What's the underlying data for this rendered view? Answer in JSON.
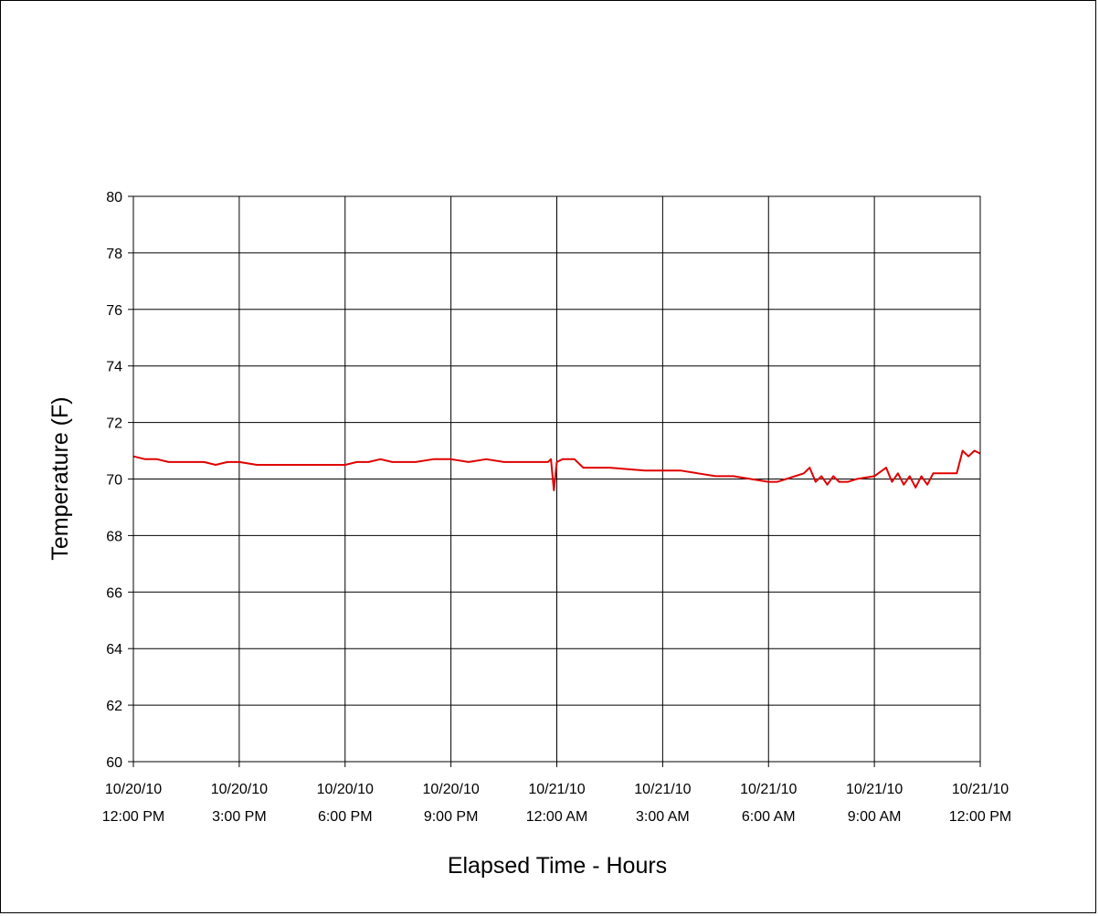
{
  "chart_data": {
    "type": "line",
    "title": "",
    "xlabel": "Elapsed Time - Hours",
    "ylabel": "Temperature (F)",
    "ylim": [
      60,
      80
    ],
    "yticks": [
      60,
      62,
      64,
      66,
      68,
      70,
      72,
      74,
      76,
      78,
      80
    ],
    "xlim": [
      "2010-10-20 12:00",
      "2010-10-21 12:00"
    ],
    "xticks": [
      {
        "date": "10/20/10",
        "time": "12:00 PM"
      },
      {
        "date": "10/20/10",
        "time": "3:00 PM"
      },
      {
        "date": "10/20/10",
        "time": "6:00 PM"
      },
      {
        "date": "10/20/10",
        "time": "9:00 PM"
      },
      {
        "date": "10/21/10",
        "time": "12:00 AM"
      },
      {
        "date": "10/21/10",
        "time": "3:00 AM"
      },
      {
        "date": "10/21/10",
        "time": "6:00 AM"
      },
      {
        "date": "10/21/10",
        "time": "9:00 AM"
      },
      {
        "date": "10/21/10",
        "time": "12:00 PM"
      }
    ],
    "grid": true,
    "legend": "none",
    "line_color": "#e00000",
    "series": [
      {
        "x": [
          "2010-10-20 12:00",
          "2010-10-20 12:20",
          "2010-10-20 12:40",
          "2010-10-20 13:00",
          "2010-10-20 13:30",
          "2010-10-20 14:00",
          "2010-10-20 14:20",
          "2010-10-20 14:40",
          "2010-10-20 15:00",
          "2010-10-20 15:30",
          "2010-10-20 16:30",
          "2010-10-20 17:30",
          "2010-10-20 18:00",
          "2010-10-20 18:20",
          "2010-10-20 18:40",
          "2010-10-20 19:00",
          "2010-10-20 19:20",
          "2010-10-20 19:40",
          "2010-10-20 20:00",
          "2010-10-20 20:30",
          "2010-10-20 21:00",
          "2010-10-20 21:30",
          "2010-10-20 22:00",
          "2010-10-20 22:30",
          "2010-10-20 23:00",
          "2010-10-20 23:30",
          "2010-10-20 23:45",
          "2010-10-20 23:50",
          "2010-10-20 23:55",
          "2010-10-21 00:00",
          "2010-10-21 00:10",
          "2010-10-21 00:30",
          "2010-10-21 00:45",
          "2010-10-21 01:30",
          "2010-10-21 02:30",
          "2010-10-21 03:30",
          "2010-10-21 04:00",
          "2010-10-21 04:30",
          "2010-10-21 05:00",
          "2010-10-21 05:30",
          "2010-10-21 06:00",
          "2010-10-21 06:15",
          "2010-10-21 06:30",
          "2010-10-21 07:00",
          "2010-10-21 07:10",
          "2010-10-21 07:20",
          "2010-10-21 07:30",
          "2010-10-21 07:40",
          "2010-10-21 07:50",
          "2010-10-21 08:00",
          "2010-10-21 08:15",
          "2010-10-21 08:30",
          "2010-10-21 09:00",
          "2010-10-21 09:20",
          "2010-10-21 09:30",
          "2010-10-21 09:40",
          "2010-10-21 09:50",
          "2010-10-21 10:00",
          "2010-10-21 10:10",
          "2010-10-21 10:20",
          "2010-10-21 10:30",
          "2010-10-21 10:40",
          "2010-10-21 11:00",
          "2010-10-21 11:20",
          "2010-10-21 11:30",
          "2010-10-21 11:40",
          "2010-10-21 11:50",
          "2010-10-21 12:00"
        ],
        "y": [
          70.8,
          70.7,
          70.7,
          70.6,
          70.6,
          70.6,
          70.5,
          70.6,
          70.6,
          70.5,
          70.5,
          70.5,
          70.5,
          70.6,
          70.6,
          70.7,
          70.6,
          70.6,
          70.6,
          70.7,
          70.7,
          70.6,
          70.7,
          70.6,
          70.6,
          70.6,
          70.6,
          70.7,
          69.6,
          70.6,
          70.7,
          70.7,
          70.4,
          70.4,
          70.3,
          70.3,
          70.2,
          70.1,
          70.1,
          70.0,
          69.9,
          69.9,
          70.0,
          70.2,
          70.4,
          69.9,
          70.1,
          69.8,
          70.1,
          69.9,
          69.9,
          70.0,
          70.1,
          70.4,
          69.9,
          70.2,
          69.8,
          70.1,
          69.7,
          70.1,
          69.8,
          70.2,
          70.2,
          70.2,
          71.0,
          70.8,
          71.0,
          70.9
        ]
      }
    ]
  }
}
